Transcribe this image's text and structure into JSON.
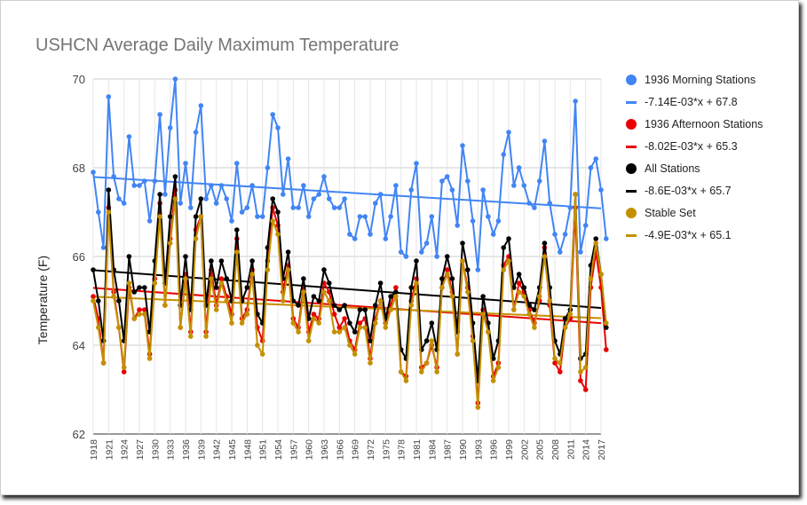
{
  "chart_data": {
    "type": "line",
    "title": "USHCN Average Daily Maximum Temperature",
    "xlabel": "",
    "ylabel": "Temperature (F)",
    "ylim": [
      62,
      70
    ],
    "yticks": [
      "62",
      "64",
      "66",
      "68",
      "70"
    ],
    "xlim": [
      1918,
      2017
    ],
    "xticks": [
      "1918",
      "1921",
      "1924",
      "1927",
      "1930",
      "1933",
      "1936",
      "1939",
      "1942",
      "1945",
      "1948",
      "1951",
      "1954",
      "1957",
      "1960",
      "1963",
      "1966",
      "1969",
      "1972",
      "1975",
      "1978",
      "1981",
      "1984",
      "1987",
      "1990",
      "1993",
      "1996",
      "1999",
      "2002",
      "2005",
      "2008",
      "2011",
      "2014",
      "2017"
    ],
    "grid": true,
    "legend_position": "right",
    "series": [
      {
        "name": "1936 Morning Stations",
        "color": "#4285f4",
        "start_year": 1918,
        "values": [
          67.9,
          67.0,
          66.2,
          69.6,
          67.8,
          67.3,
          67.2,
          68.7,
          67.6,
          67.6,
          67.7,
          66.8,
          67.7,
          69.2,
          67.4,
          68.9,
          70.0,
          67.2,
          68.1,
          67.1,
          68.8,
          69.4,
          67.3,
          67.6,
          67.2,
          67.6,
          67.3,
          66.8,
          68.1,
          67.0,
          67.1,
          67.6,
          66.9,
          66.9,
          68.0,
          69.2,
          68.9,
          67.4,
          68.2,
          67.1,
          67.1,
          67.6,
          66.9,
          67.3,
          67.4,
          67.8,
          67.3,
          67.1,
          67.1,
          67.3,
          66.5,
          66.4,
          66.9,
          66.9,
          66.5,
          67.2,
          67.4,
          66.4,
          66.9,
          67.6,
          66.1,
          66.0,
          67.5,
          68.1,
          66.1,
          66.3,
          66.9,
          66.0,
          67.7,
          67.8,
          67.5,
          66.7,
          68.5,
          67.7,
          66.8,
          65.7,
          67.5,
          66.9,
          66.5,
          66.8,
          68.3,
          68.8,
          67.6,
          68.0,
          67.6,
          67.2,
          67.1,
          67.7,
          68.6,
          67.2,
          66.5,
          66.1,
          66.5,
          67.1,
          69.5,
          66.1,
          66.7,
          68.0,
          68.2,
          67.5,
          66.4
        ]
      },
      {
        "name": "1936 Afternoon Stations",
        "color": "#ea0000",
        "start_year": 1918,
        "values": [
          65.1,
          64.6,
          63.6,
          67.1,
          65.2,
          64.4,
          63.4,
          65.3,
          64.6,
          64.8,
          64.8,
          63.8,
          65.5,
          67.2,
          64.9,
          66.4,
          67.5,
          64.4,
          65.6,
          64.3,
          66.6,
          66.9,
          64.3,
          65.7,
          64.9,
          65.5,
          65.1,
          64.7,
          66.4,
          64.6,
          64.8,
          65.7,
          64.4,
          64.1,
          65.9,
          67.1,
          66.7,
          65.2,
          65.8,
          64.6,
          64.4,
          65.3,
          64.3,
          64.7,
          64.6,
          65.4,
          65.2,
          64.7,
          64.4,
          64.6,
          64.1,
          63.9,
          64.5,
          64.6,
          63.7,
          64.6,
          65.0,
          64.5,
          64.9,
          65.3,
          63.4,
          63.3,
          65.0,
          65.5,
          63.5,
          63.6,
          64.0,
          63.5,
          65.3,
          65.7,
          65.2,
          63.8,
          65.9,
          65.3,
          64.2,
          62.7,
          64.8,
          64.3,
          63.3,
          63.6,
          65.8,
          66.0,
          64.8,
          65.4,
          65.2,
          64.8,
          64.5,
          65.0,
          66.2,
          64.9,
          63.6,
          63.4,
          64.4,
          64.6,
          67.1,
          63.2,
          63.0,
          65.3,
          66.1,
          65.3,
          63.9
        ]
      },
      {
        "name": "All Stations",
        "color": "#000000",
        "start_year": 1918,
        "values": [
          65.7,
          65.0,
          64.1,
          67.5,
          65.7,
          65.0,
          64.1,
          66.0,
          65.2,
          65.3,
          65.3,
          64.3,
          65.9,
          67.4,
          65.4,
          66.9,
          67.8,
          64.9,
          66.0,
          64.8,
          66.9,
          67.3,
          64.9,
          65.9,
          65.3,
          65.9,
          65.5,
          65.0,
          66.6,
          65.0,
          65.3,
          65.9,
          64.7,
          64.5,
          66.2,
          67.3,
          67.0,
          65.5,
          66.1,
          65.0,
          64.9,
          65.5,
          64.6,
          65.1,
          65.0,
          65.7,
          65.4,
          64.9,
          64.8,
          64.9,
          64.5,
          64.3,
          64.8,
          64.8,
          64.1,
          64.9,
          65.4,
          64.6,
          65.1,
          65.2,
          63.9,
          63.7,
          65.3,
          65.9,
          63.9,
          64.1,
          64.5,
          63.9,
          65.5,
          66.0,
          65.5,
          64.3,
          66.3,
          65.7,
          64.5,
          63.2,
          65.1,
          64.5,
          63.7,
          64.1,
          66.2,
          66.4,
          65.3,
          65.6,
          65.3,
          64.9,
          64.8,
          65.3,
          66.3,
          65.3,
          64.1,
          63.8,
          64.6,
          64.8,
          67.4,
          63.7,
          63.8,
          65.8,
          66.4,
          65.6,
          64.4
        ]
      },
      {
        "name": "Stable Set",
        "color": "#c49000",
        "start_year": 1918,
        "values": [
          65.0,
          64.4,
          63.6,
          67.0,
          65.1,
          64.4,
          63.5,
          65.4,
          64.6,
          64.7,
          64.7,
          63.7,
          65.4,
          66.9,
          64.9,
          66.3,
          67.3,
          64.4,
          65.5,
          64.2,
          66.4,
          66.9,
          64.2,
          65.5,
          64.8,
          65.4,
          65.0,
          64.5,
          66.1,
          64.5,
          64.7,
          65.6,
          64.0,
          63.8,
          65.7,
          66.8,
          66.5,
          65.0,
          65.7,
          64.5,
          64.3,
          65.2,
          64.1,
          64.6,
          64.5,
          65.2,
          65.0,
          64.3,
          64.3,
          64.4,
          64.0,
          63.8,
          64.4,
          64.4,
          63.6,
          64.5,
          65.0,
          64.4,
          64.8,
          65.1,
          63.4,
          63.2,
          64.9,
          65.4,
          63.4,
          63.6,
          64.1,
          63.4,
          65.3,
          65.6,
          65.1,
          63.8,
          65.9,
          65.2,
          64.1,
          62.6,
          64.7,
          64.3,
          63.2,
          63.5,
          65.7,
          65.9,
          64.8,
          65.2,
          65.1,
          64.7,
          64.4,
          65.1,
          66.0,
          65.0,
          63.7,
          63.6,
          64.4,
          64.7,
          67.4,
          63.4,
          63.5,
          65.5,
          66.3,
          65.6,
          64.5
        ]
      },
      {
        "name": "-7.14E-03*x + 67.8",
        "color": "#4285f4",
        "trendline": true,
        "slope": -0.00714,
        "intercept": 67.8
      },
      {
        "name": "-8.02E-03*x + 65.3",
        "color": "#ea0000",
        "trendline": true,
        "slope": -0.00802,
        "intercept": 65.3
      },
      {
        "name": "-8.6E-03*x + 65.7",
        "color": "#000000",
        "trendline": true,
        "slope": -0.0086,
        "intercept": 65.7
      },
      {
        "name": "-4.9E-03*x + 65.1",
        "color": "#c49000",
        "trendline": true,
        "slope": -0.0049,
        "intercept": 65.1
      }
    ]
  },
  "legend": [
    {
      "label": "1936 Morning Stations",
      "kind": "dot",
      "color": "#4285f4"
    },
    {
      "label": "-7.14E-03*x + 67.8",
      "kind": "line",
      "color": "#4285f4"
    },
    {
      "label": "1936 Afternoon Stations",
      "kind": "dot",
      "color": "#ea0000"
    },
    {
      "label": "-8.02E-03*x + 65.3",
      "kind": "line",
      "color": "#ea0000"
    },
    {
      "label": "All Stations",
      "kind": "dot",
      "color": "#000000"
    },
    {
      "label": "-8.6E-03*x + 65.7",
      "kind": "line",
      "color": "#000000"
    },
    {
      "label": "Stable Set",
      "kind": "dot",
      "color": "#c49000"
    },
    {
      "label": "-4.9E-03*x + 65.1",
      "kind": "line",
      "color": "#c49000"
    }
  ]
}
